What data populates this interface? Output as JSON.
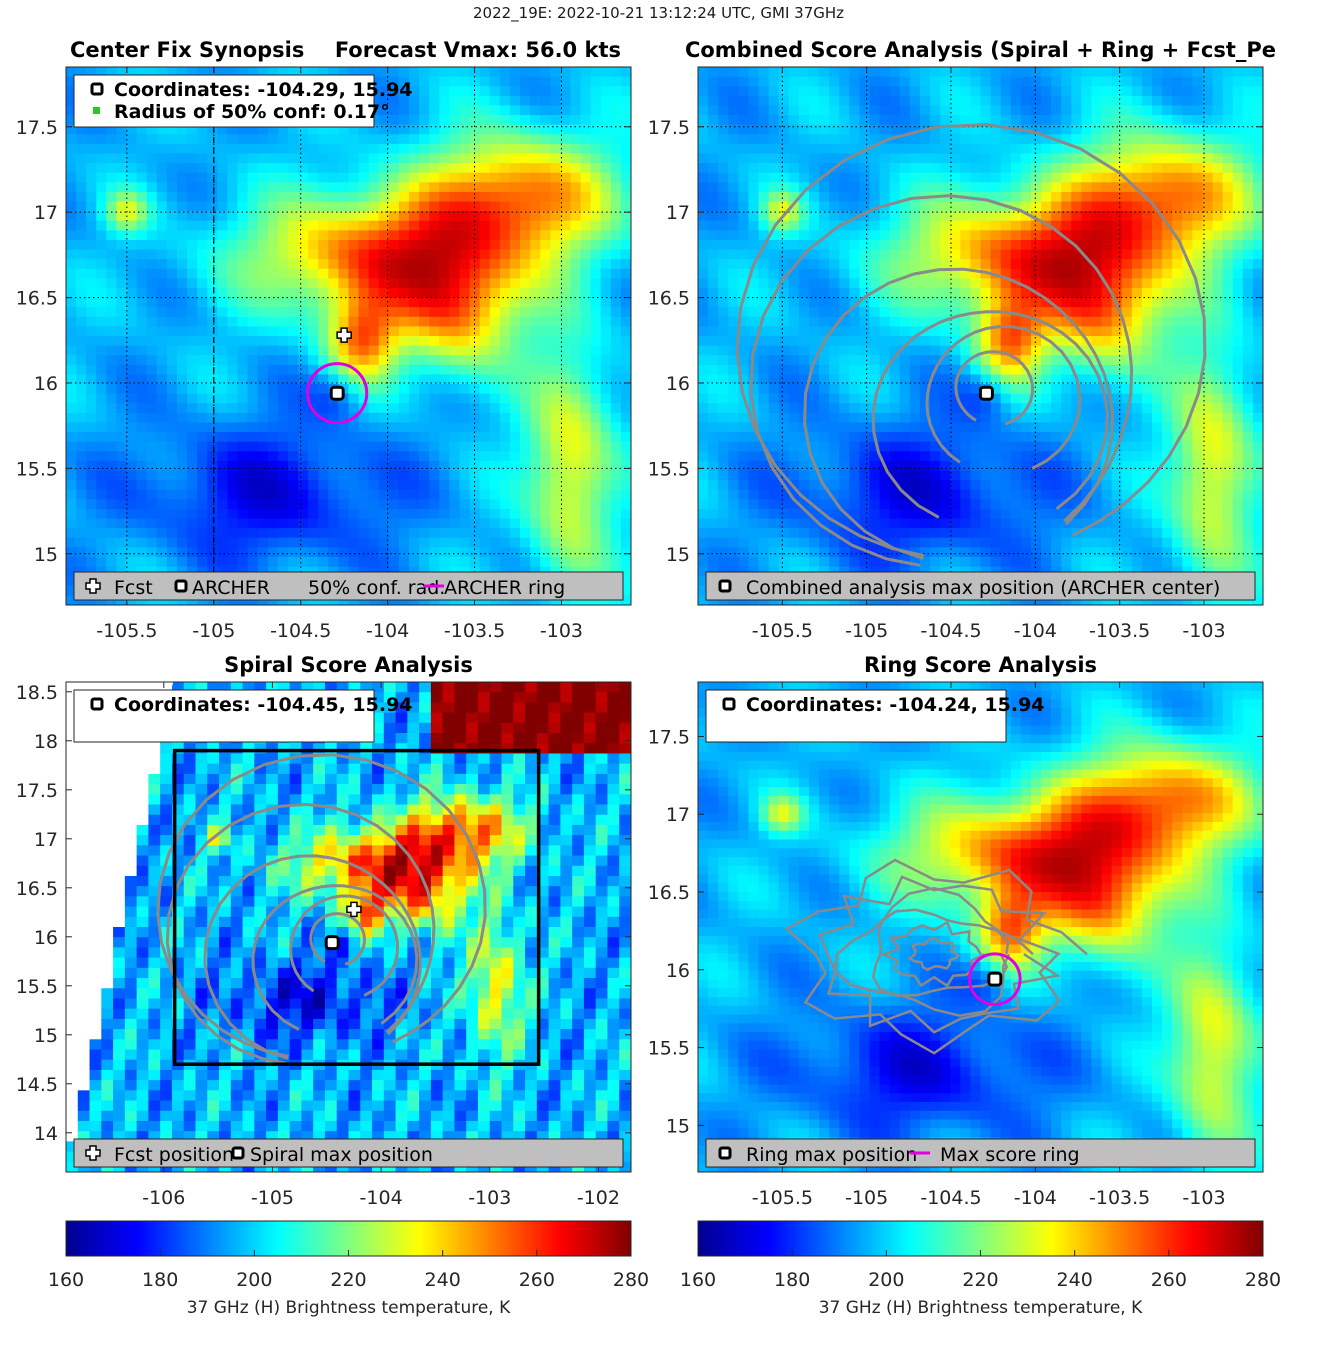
{
  "suptitle": "2022_19E: 2022-10-21 13:12:24 UTC, GMI 37GHz",
  "colors": {
    "contour": "#8a8a8a",
    "ring": "#e000e0",
    "conf_dot": "#22cc22",
    "legend_bg": "#bfbfbf",
    "colormap": [
      "#00008f",
      "#0000ff",
      "#0080ff",
      "#00ffff",
      "#80ff80",
      "#ffff00",
      "#ff8000",
      "#ff0000",
      "#800000"
    ]
  },
  "colorbar": {
    "label": "37 GHz (H) Brightness temperature, K",
    "ticks": [
      "160",
      "180",
      "200",
      "220",
      "240",
      "260",
      "280"
    ],
    "range": [
      160,
      280
    ]
  },
  "chart_data": [
    {
      "id": "synopsis",
      "type": "heatmap",
      "title_left": "Center Fix Synopsis",
      "title_right": "Forecast Vmax: 56.0 kts",
      "xlim": [
        -105.85,
        -102.6
      ],
      "ylim": [
        14.7,
        17.85
      ],
      "xticks": [
        -105.5,
        -105,
        -104.5,
        -104,
        -103.5,
        -103
      ],
      "xtick_labels": [
        "-105.5",
        "-105",
        "-104.5",
        "-104",
        "-103.5",
        "-103"
      ],
      "yticks": [
        15,
        15.5,
        16,
        16.5,
        17,
        17.5
      ],
      "ytick_labels": [
        "15",
        "15.5",
        "16",
        "16.5",
        "17",
        "17.5"
      ],
      "info": {
        "coords": "Coordinates: -104.29, 15.94",
        "radius": "Radius of 50% conf: 0.17°"
      },
      "legend": [
        "Fcst",
        "ARCHER",
        "50% conf. rad.",
        "ARCHER ring"
      ],
      "archer_center": [
        -104.29,
        15.94
      ],
      "forecast_position": [
        -104.25,
        16.28
      ],
      "ring_radius_deg": 0.17,
      "show_grid": true
    },
    {
      "id": "combined",
      "type": "heatmap",
      "title": "Combined Score Analysis (Spiral + Ring + Fcst_Pe",
      "xlim": [
        -106.0,
        -102.65
      ],
      "ylim": [
        14.7,
        17.85
      ],
      "xticks": [
        -105.5,
        -105,
        -104.5,
        -104,
        -103.5,
        -103
      ],
      "xtick_labels": [
        "-105.5",
        "-105",
        "-104.5",
        "-104",
        "-103.5",
        "-103"
      ],
      "yticks": [
        15,
        15.5,
        16,
        16.5,
        17,
        17.5
      ],
      "ytick_labels": [
        "15",
        "15.5",
        "16",
        "16.5",
        "17",
        "17.5"
      ],
      "legend": [
        "Combined analysis max position (ARCHER center)"
      ],
      "max_position": [
        -104.29,
        15.94
      ],
      "show_grid": true
    },
    {
      "id": "spiral",
      "type": "heatmap",
      "title": "Spiral Score Analysis",
      "xlim": [
        -106.9,
        -101.7
      ],
      "ylim": [
        13.6,
        18.6
      ],
      "xticks": [
        -106,
        -105,
        -104,
        -103,
        -102
      ],
      "xtick_labels": [
        "-106",
        "-105",
        "-104",
        "-103",
        "-102"
      ],
      "yticks": [
        14,
        14.5,
        15,
        15.5,
        16,
        16.5,
        17,
        17.5,
        18,
        18.5
      ],
      "ytick_labels": [
        "14",
        "14.5",
        "15",
        "15.5",
        "16",
        "16.5",
        "17",
        "17.5",
        "18",
        "18.5"
      ],
      "info": {
        "coords": "Coordinates: -104.45, 15.94"
      },
      "legend": [
        "Fcst position",
        "Spiral max position"
      ],
      "max_position": [
        -104.45,
        15.94
      ],
      "forecast_position": [
        -104.25,
        16.28
      ],
      "search_box": {
        "x": [
          -105.9,
          -102.55
        ],
        "y": [
          14.7,
          17.9
        ]
      },
      "show_grid": false
    },
    {
      "id": "ring",
      "type": "heatmap",
      "title": "Ring Score Analysis",
      "xlim": [
        -106.0,
        -102.65
      ],
      "ylim": [
        14.7,
        17.85
      ],
      "xticks": [
        -105.5,
        -105,
        -104.5,
        -104,
        -103.5,
        -103
      ],
      "xtick_labels": [
        "-105.5",
        "-105",
        "-104.5",
        "-104",
        "-103.5",
        "-103"
      ],
      "yticks": [
        15,
        15.5,
        16,
        16.5,
        17,
        17.5
      ],
      "ytick_labels": [
        "15",
        "15.5",
        "16",
        "16.5",
        "17",
        "17.5"
      ],
      "info": {
        "coords": "Coordinates: -104.24, 15.94"
      },
      "legend": [
        "Ring max position",
        "Max score ring"
      ],
      "max_position": [
        -104.24,
        15.94
      ],
      "ring_radius_deg": 0.15,
      "show_grid": false
    }
  ]
}
